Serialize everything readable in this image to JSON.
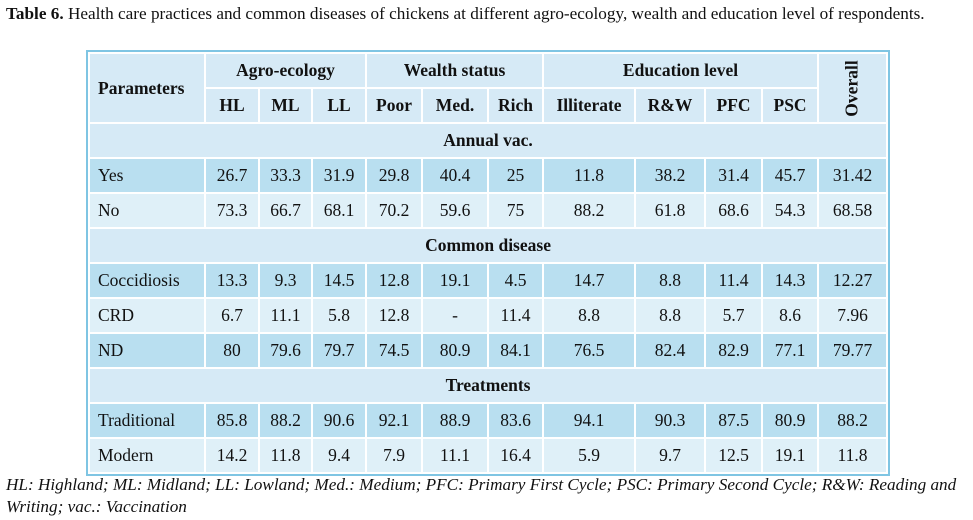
{
  "caption": {
    "label": "Table 6.",
    "text": " Health care practices and common diseases of chickens at different agro-ecology, wealth and education level of respondents."
  },
  "header": {
    "parameters": "Parameters",
    "groups": {
      "agro": "Agro-ecology",
      "wealth": "Wealth status",
      "education": "Education level"
    },
    "overall": "Overall",
    "columns": [
      "HL",
      "ML",
      "LL",
      "Poor",
      "Med.",
      "Rich",
      "Illiterate",
      "R&W",
      "PFC",
      "PSC"
    ]
  },
  "sections": [
    {
      "title": "Annual vac.",
      "rows": [
        {
          "label": "Yes",
          "values": [
            "26.7",
            "33.3",
            "31.9",
            "29.8",
            "40.4",
            "25",
            "11.8",
            "38.2",
            "31.4",
            "45.7",
            "31.42"
          ]
        },
        {
          "label": "No",
          "values": [
            "73.3",
            "66.7",
            "68.1",
            "70.2",
            "59.6",
            "75",
            "88.2",
            "61.8",
            "68.6",
            "54.3",
            "68.58"
          ]
        }
      ]
    },
    {
      "title": "Common disease",
      "rows": [
        {
          "label": "Coccidiosis",
          "values": [
            "13.3",
            "9.3",
            "14.5",
            "12.8",
            "19.1",
            "4.5",
            "14.7",
            "8.8",
            "11.4",
            "14.3",
            "12.27"
          ]
        },
        {
          "label": "CRD",
          "values": [
            "6.7",
            "11.1",
            "5.8",
            "12.8",
            "-",
            "11.4",
            "8.8",
            "8.8",
            "5.7",
            "8.6",
            "7.96"
          ]
        },
        {
          "label": "ND",
          "values": [
            "80",
            "79.6",
            "79.7",
            "74.5",
            "80.9",
            "84.1",
            "76.5",
            "82.4",
            "82.9",
            "77.1",
            "79.77"
          ]
        }
      ]
    },
    {
      "title": "Treatments",
      "rows": [
        {
          "label": "Traditional",
          "values": [
            "85.8",
            "88.2",
            "90.6",
            "92.1",
            "88.9",
            "83.6",
            "94.1",
            "90.3",
            "87.5",
            "80.9",
            "88.2"
          ]
        },
        {
          "label": "Modern",
          "values": [
            "14.2",
            "11.8",
            "9.4",
            "7.9",
            "11.1",
            "16.4",
            "5.9",
            "9.7",
            "12.5",
            "19.1",
            "11.8"
          ]
        }
      ]
    }
  ],
  "footnote": "HL: Highland; ML: Midland; LL: Lowland; Med.: Medium; PFC: Primary First Cycle; PSC: Primary Second Cycle; R&W: Reading and Writing; vac.: Vaccination",
  "colors": {
    "header_bg": "#d6eaf6",
    "row_dark": "#b9dff0",
    "row_light": "#dff0f8",
    "border": "#7fc5e3"
  }
}
